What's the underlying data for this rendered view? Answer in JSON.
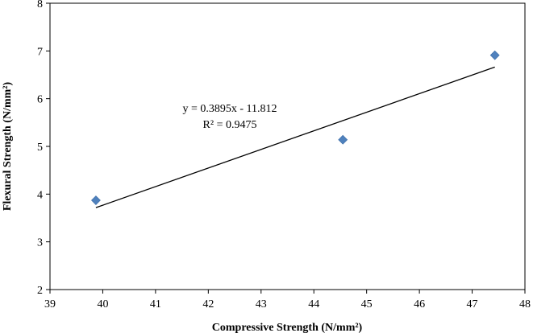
{
  "chart_data": {
    "type": "scatter",
    "title": "",
    "xlabel": "Compressive Strength (N/mm²)",
    "ylabel": "Flexural Strength (N/mm²)",
    "xlim": [
      39,
      48
    ],
    "ylim": [
      2,
      8
    ],
    "x_ticks": [
      "39",
      "40",
      "41",
      "42",
      "43",
      "44",
      "45",
      "46",
      "47",
      "48"
    ],
    "y_ticks": [
      "2",
      "3",
      "4",
      "5",
      "6",
      "7",
      "8"
    ],
    "grid": false,
    "legend": "none",
    "series": [
      {
        "marker": "diamond",
        "color": "#4F81BD",
        "points": [
          {
            "x": 39.87,
            "y": 3.87
          },
          {
            "x": 44.55,
            "y": 5.14
          },
          {
            "x": 47.43,
            "y": 6.91
          }
        ]
      }
    ],
    "trendline": {
      "type": "linear",
      "slope": 0.3895,
      "intercept": -11.812,
      "x_range": [
        39.87,
        47.43
      ],
      "color": "#000000"
    },
    "annotations": {
      "equation": "y = 0.3895x - 11.812",
      "r_squared": "R² = 0.9475"
    }
  }
}
